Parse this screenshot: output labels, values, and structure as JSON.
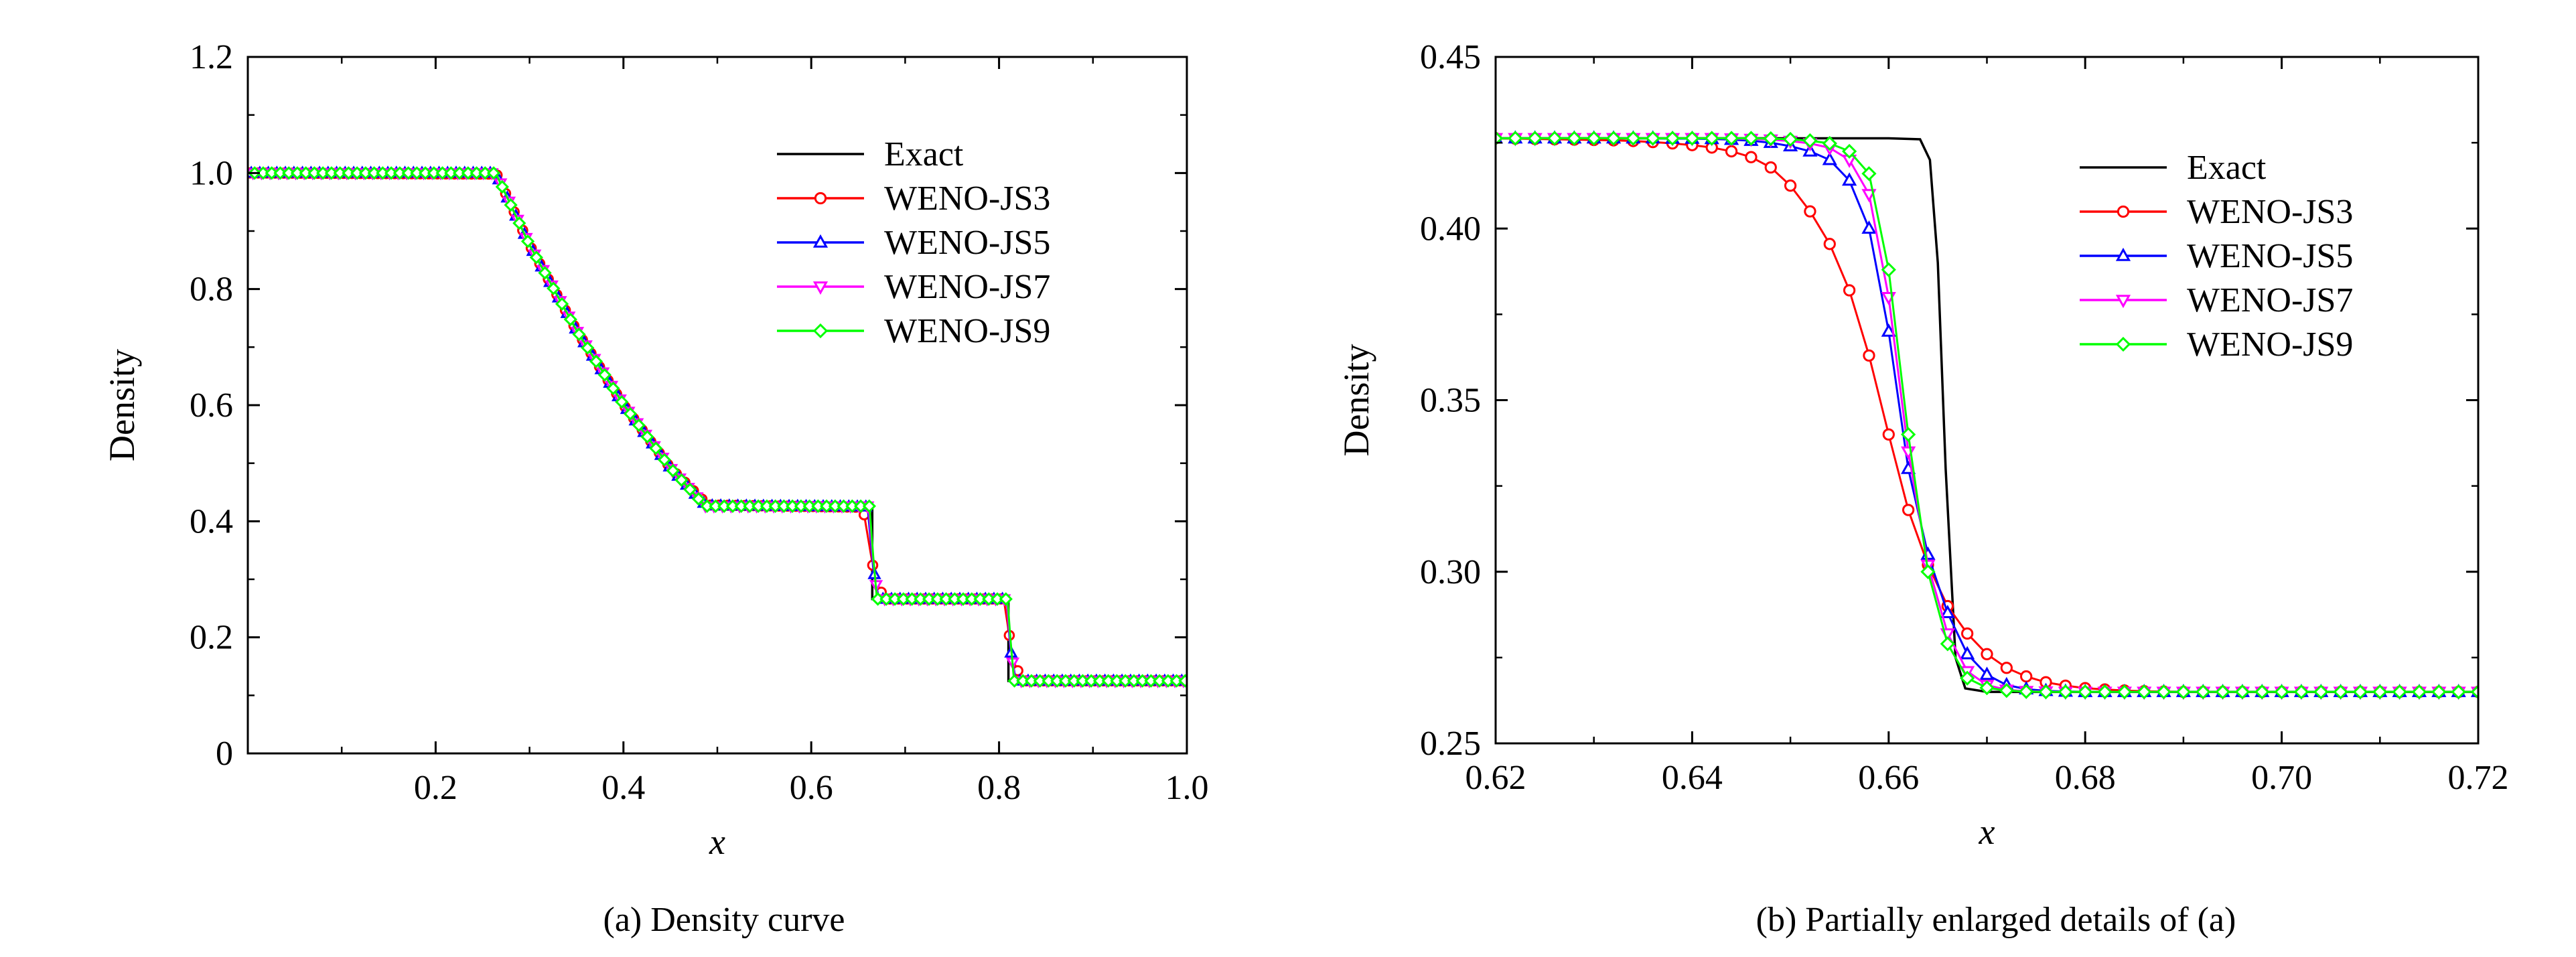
{
  "colors": {
    "exact": "#000000",
    "weno_js3": "#ff0000",
    "weno_js5": "#0000ff",
    "weno_js7": "#ff00ff",
    "weno_js9": "#00ff00"
  },
  "chart_data": [
    {
      "type": "line",
      "title": "",
      "caption": "(a) Density curve",
      "xlabel": "x",
      "ylabel": "Density",
      "xlim": [
        0,
        1.0
      ],
      "ylim": [
        0,
        1.2
      ],
      "xticks": [
        0.2,
        0.4,
        0.6,
        0.8,
        1.0
      ],
      "xtick_labels": [
        "0.2",
        "0.4",
        "0.6",
        "0.8",
        "1.0"
      ],
      "yticks": [
        0,
        0.2,
        0.4,
        0.6,
        0.8,
        1.0,
        1.2
      ],
      "ytick_labels": [
        "0",
        "0.2",
        "0.4",
        "0.6",
        "0.8",
        "1.0",
        "1.2"
      ],
      "legend": {
        "placement": "top-right",
        "entries": [
          "Exact",
          "WENO-JS3",
          "WENO-JS5",
          "WENO-JS7",
          "WENO-JS9"
        ]
      },
      "series": [
        {
          "name": "Exact",
          "marker": "none",
          "x": [
            0,
            0.263,
            0.3,
            0.35,
            0.4,
            0.45,
            0.486,
            0.665,
            0.665,
            0.81,
            0.81,
            1.0
          ],
          "y": [
            1.0,
            1.0,
            0.876,
            0.729,
            0.601,
            0.492,
            0.426,
            0.426,
            0.266,
            0.266,
            0.125,
            0.125
          ]
        },
        {
          "name": "WENO-JS3",
          "marker": "circle",
          "x": [
            0,
            0.265,
            0.3,
            0.35,
            0.4,
            0.45,
            0.49,
            0.655,
            0.668,
            0.678,
            0.805,
            0.815,
            0.825,
            1.0
          ],
          "y": [
            1.0,
            0.998,
            0.876,
            0.729,
            0.601,
            0.492,
            0.428,
            0.424,
            0.3,
            0.266,
            0.266,
            0.16,
            0.125,
            0.125
          ]
        },
        {
          "name": "WENO-JS5",
          "marker": "triangle-up",
          "x": [
            0,
            0.264,
            0.3,
            0.35,
            0.4,
            0.45,
            0.488,
            0.66,
            0.666,
            0.672,
            0.808,
            0.812,
            0.818,
            1.0
          ],
          "y": [
            1.0,
            1.0,
            0.876,
            0.729,
            0.601,
            0.492,
            0.427,
            0.425,
            0.32,
            0.266,
            0.266,
            0.18,
            0.125,
            0.125
          ]
        },
        {
          "name": "WENO-JS7",
          "marker": "triangle-down",
          "x": [
            0,
            0.264,
            0.3,
            0.35,
            0.4,
            0.45,
            0.487,
            0.661,
            0.666,
            0.671,
            0.808,
            0.812,
            0.817,
            1.0
          ],
          "y": [
            1.0,
            1.0,
            0.876,
            0.729,
            0.601,
            0.492,
            0.426,
            0.426,
            0.33,
            0.266,
            0.266,
            0.19,
            0.125,
            0.125
          ]
        },
        {
          "name": "WENO-JS9",
          "marker": "diamond",
          "x": [
            0,
            0.264,
            0.3,
            0.35,
            0.4,
            0.45,
            0.487,
            0.662,
            0.666,
            0.67,
            0.809,
            0.812,
            0.816,
            1.0
          ],
          "y": [
            1.0,
            1.0,
            0.876,
            0.729,
            0.601,
            0.492,
            0.426,
            0.426,
            0.34,
            0.266,
            0.266,
            0.2,
            0.125,
            0.125
          ]
        }
      ]
    },
    {
      "type": "line",
      "title": "",
      "caption": "(b) Partially enlarged details of (a)",
      "xlabel": "x",
      "ylabel": "Density",
      "xlim": [
        0.62,
        0.72
      ],
      "ylim": [
        0.25,
        0.45
      ],
      "xticks": [
        0.62,
        0.64,
        0.66,
        0.68,
        0.7,
        0.72
      ],
      "xtick_labels": [
        "0.62",
        "0.64",
        "0.66",
        "0.68",
        "0.70",
        "0.72"
      ],
      "yticks": [
        0.25,
        0.3,
        0.35,
        0.4,
        0.45
      ],
      "ytick_labels": [
        "0.25",
        "0.30",
        "0.35",
        "0.40",
        "0.45"
      ],
      "legend": {
        "placement": "top-right",
        "entries": [
          "Exact",
          "WENO-JS3",
          "WENO-JS5",
          "WENO-JS7",
          "WENO-JS9"
        ]
      },
      "series": [
        {
          "name": "Exact",
          "marker": "none",
          "x": [
            0.62,
            0.66,
            0.6632,
            0.6642,
            0.665,
            0.6658,
            0.6668,
            0.6678,
            0.67,
            0.72
          ],
          "y": [
            0.4263,
            0.4263,
            0.426,
            0.42,
            0.39,
            0.33,
            0.275,
            0.266,
            0.265,
            0.265
          ]
        },
        {
          "name": "WENO-JS3",
          "marker": "circle",
          "x": [
            0.62,
            0.622,
            0.624,
            0.626,
            0.628,
            0.63,
            0.632,
            0.634,
            0.636,
            0.638,
            0.64,
            0.642,
            0.644,
            0.646,
            0.648,
            0.65,
            0.652,
            0.654,
            0.656,
            0.658,
            0.66,
            0.662,
            0.664,
            0.666,
            0.668,
            0.67,
            0.672,
            0.674,
            0.676,
            0.678,
            0.68,
            0.682,
            0.684,
            0.686,
            0.688,
            0.69,
            0.692,
            0.694,
            0.696,
            0.698,
            0.7,
            0.702,
            0.704,
            0.706,
            0.708,
            0.71,
            0.712,
            0.714,
            0.716,
            0.718,
            0.72
          ],
          "y": [
            0.4263,
            0.4262,
            0.4261,
            0.426,
            0.4259,
            0.4258,
            0.4257,
            0.4255,
            0.4252,
            0.4248,
            0.4243,
            0.4236,
            0.4225,
            0.4208,
            0.4178,
            0.4125,
            0.405,
            0.3955,
            0.382,
            0.363,
            0.34,
            0.318,
            0.302,
            0.29,
            0.282,
            0.276,
            0.272,
            0.2695,
            0.2678,
            0.2668,
            0.2661,
            0.2657,
            0.2654,
            0.2652,
            0.2651,
            0.265,
            0.265,
            0.265,
            0.265,
            0.265,
            0.265,
            0.265,
            0.265,
            0.265,
            0.265,
            0.265,
            0.265,
            0.265,
            0.265,
            0.265,
            0.265
          ]
        },
        {
          "name": "WENO-JS5",
          "marker": "triangle-up",
          "x": [
            0.62,
            0.622,
            0.624,
            0.626,
            0.628,
            0.63,
            0.632,
            0.634,
            0.636,
            0.638,
            0.64,
            0.642,
            0.644,
            0.646,
            0.648,
            0.65,
            0.652,
            0.654,
            0.656,
            0.658,
            0.66,
            0.662,
            0.664,
            0.666,
            0.668,
            0.67,
            0.672,
            0.674,
            0.676,
            0.678,
            0.68,
            0.682,
            0.684,
            0.686,
            0.688,
            0.69,
            0.692,
            0.694,
            0.696,
            0.698,
            0.7,
            0.702,
            0.704,
            0.706,
            0.708,
            0.71,
            0.712,
            0.714,
            0.716,
            0.718,
            0.72
          ],
          "y": [
            0.4263,
            0.4263,
            0.4263,
            0.4263,
            0.4263,
            0.4263,
            0.4263,
            0.4263,
            0.4263,
            0.4262,
            0.4262,
            0.4261,
            0.4259,
            0.4256,
            0.425,
            0.424,
            0.4225,
            0.42,
            0.414,
            0.4,
            0.37,
            0.33,
            0.305,
            0.288,
            0.276,
            0.27,
            0.267,
            0.2658,
            0.2653,
            0.2651,
            0.265,
            0.265,
            0.265,
            0.265,
            0.265,
            0.265,
            0.265,
            0.265,
            0.265,
            0.265,
            0.265,
            0.265,
            0.265,
            0.265,
            0.265,
            0.265,
            0.265,
            0.265,
            0.265,
            0.265,
            0.265
          ]
        },
        {
          "name": "WENO-JS7",
          "marker": "triangle-down",
          "x": [
            0.62,
            0.622,
            0.624,
            0.626,
            0.628,
            0.63,
            0.632,
            0.634,
            0.636,
            0.638,
            0.64,
            0.642,
            0.644,
            0.646,
            0.648,
            0.65,
            0.652,
            0.654,
            0.656,
            0.658,
            0.66,
            0.662,
            0.664,
            0.666,
            0.668,
            0.67,
            0.672,
            0.674,
            0.676,
            0.678,
            0.68,
            0.682,
            0.684,
            0.686,
            0.688,
            0.69,
            0.692,
            0.694,
            0.696,
            0.698,
            0.7,
            0.702,
            0.704,
            0.706,
            0.708,
            0.71,
            0.712,
            0.714,
            0.716,
            0.718,
            0.72
          ],
          "y": [
            0.4263,
            0.4263,
            0.4263,
            0.4263,
            0.4263,
            0.4263,
            0.4263,
            0.4263,
            0.4263,
            0.4263,
            0.4263,
            0.4263,
            0.4262,
            0.4261,
            0.4259,
            0.4255,
            0.4248,
            0.4235,
            0.42,
            0.41,
            0.38,
            0.335,
            0.302,
            0.282,
            0.271,
            0.267,
            0.2656,
            0.2652,
            0.2651,
            0.265,
            0.265,
            0.265,
            0.265,
            0.265,
            0.265,
            0.265,
            0.265,
            0.265,
            0.265,
            0.265,
            0.265,
            0.265,
            0.265,
            0.265,
            0.265,
            0.265,
            0.265,
            0.265,
            0.265,
            0.265,
            0.265
          ]
        },
        {
          "name": "WENO-JS9",
          "marker": "diamond",
          "x": [
            0.62,
            0.622,
            0.624,
            0.626,
            0.628,
            0.63,
            0.632,
            0.634,
            0.636,
            0.638,
            0.64,
            0.642,
            0.644,
            0.646,
            0.648,
            0.65,
            0.652,
            0.654,
            0.656,
            0.658,
            0.66,
            0.662,
            0.664,
            0.666,
            0.668,
            0.67,
            0.672,
            0.674,
            0.676,
            0.678,
            0.68,
            0.682,
            0.684,
            0.686,
            0.688,
            0.69,
            0.692,
            0.694,
            0.696,
            0.698,
            0.7,
            0.702,
            0.704,
            0.706,
            0.708,
            0.71,
            0.712,
            0.714,
            0.716,
            0.718,
            0.72
          ],
          "y": [
            0.4263,
            0.4263,
            0.4263,
            0.4263,
            0.4263,
            0.4263,
            0.4263,
            0.4263,
            0.4263,
            0.4263,
            0.4263,
            0.4263,
            0.4263,
            0.4263,
            0.4262,
            0.426,
            0.4256,
            0.4248,
            0.4225,
            0.416,
            0.388,
            0.34,
            0.3,
            0.279,
            0.269,
            0.2662,
            0.2654,
            0.2651,
            0.265,
            0.265,
            0.265,
            0.265,
            0.265,
            0.265,
            0.265,
            0.265,
            0.265,
            0.265,
            0.265,
            0.265,
            0.265,
            0.265,
            0.265,
            0.265,
            0.265,
            0.265,
            0.265,
            0.265,
            0.265,
            0.265,
            0.265
          ]
        }
      ]
    }
  ]
}
